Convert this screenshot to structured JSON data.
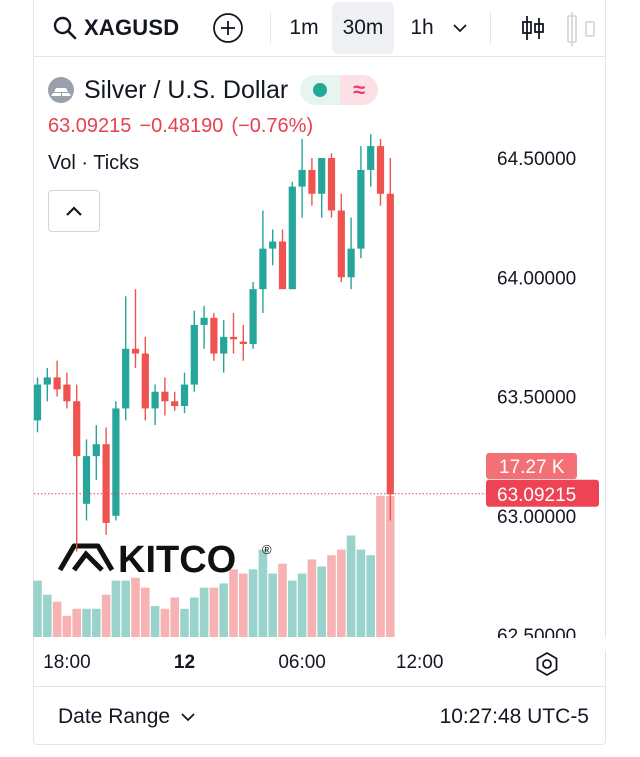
{
  "toolbar": {
    "symbol": "XAGUSD",
    "intervals": [
      "1m",
      "30m",
      "1h"
    ],
    "active_interval": "30m"
  },
  "legend": {
    "pair_name": "Silver / U.S. Dollar",
    "status_right_glyph": "≈",
    "last_price": "63.09215",
    "change": "−0.48190",
    "change_pct": "(−0.76%)",
    "volume_label": "Vol · Ticks"
  },
  "watermark": {
    "text": "KITCO",
    "mark": "®"
  },
  "bottom": {
    "date_range_label": "Date Range",
    "clock": "10:27:48 UTC-5"
  },
  "colors": {
    "up": "#26a69a",
    "down": "#ef5350",
    "vol_up": "#9ad3cc",
    "vol_down": "#f7b2b4",
    "price_tag": "#ee4354"
  },
  "chart_data": {
    "type": "candlestick",
    "timeframe": "30m",
    "ylim": [
      62.5,
      64.6
    ],
    "y_ticks": [
      62.5,
      63.0,
      63.5,
      64.0,
      64.5
    ],
    "y_tick_labels": [
      "62.50000",
      "63.00000",
      "63.50000",
      "64.00000",
      "64.50000"
    ],
    "x_tick_labels": [
      {
        "label": "18:00",
        "bar": 3
      },
      {
        "label": "12",
        "bar": 15,
        "bold": true
      },
      {
        "label": "06:00",
        "bar": 27
      },
      {
        "label": "12:00",
        "bar": 39
      }
    ],
    "last_price": 63.09215,
    "last_price_label": "63.09215",
    "last_volume_label": "17.27 K",
    "candles": [
      {
        "o": 63.4,
        "h": 63.58,
        "l": 63.35,
        "c": 63.55
      },
      {
        "o": 63.55,
        "h": 63.62,
        "l": 63.48,
        "c": 63.58
      },
      {
        "o": 63.58,
        "h": 63.65,
        "l": 63.5,
        "c": 63.53
      },
      {
        "o": 63.55,
        "h": 63.6,
        "l": 63.45,
        "c": 63.48
      },
      {
        "o": 63.48,
        "h": 63.55,
        "l": 62.85,
        "c": 63.25
      },
      {
        "o": 63.05,
        "h": 63.32,
        "l": 62.98,
        "c": 63.25
      },
      {
        "o": 63.25,
        "h": 63.38,
        "l": 63.15,
        "c": 63.3
      },
      {
        "o": 63.3,
        "h": 63.37,
        "l": 62.92,
        "c": 62.97
      },
      {
        "o": 63.0,
        "h": 63.48,
        "l": 62.98,
        "c": 63.45
      },
      {
        "o": 63.45,
        "h": 63.92,
        "l": 63.4,
        "c": 63.7
      },
      {
        "o": 63.7,
        "h": 63.95,
        "l": 63.62,
        "c": 63.68
      },
      {
        "o": 63.68,
        "h": 63.75,
        "l": 63.4,
        "c": 63.45
      },
      {
        "o": 63.45,
        "h": 63.55,
        "l": 63.38,
        "c": 63.52
      },
      {
        "o": 63.52,
        "h": 63.58,
        "l": 63.42,
        "c": 63.48
      },
      {
        "o": 63.48,
        "h": 63.52,
        "l": 63.44,
        "c": 63.46
      },
      {
        "o": 63.46,
        "h": 63.6,
        "l": 63.43,
        "c": 63.55
      },
      {
        "o": 63.55,
        "h": 63.86,
        "l": 63.52,
        "c": 63.8
      },
      {
        "o": 63.8,
        "h": 63.88,
        "l": 63.7,
        "c": 63.83
      },
      {
        "o": 63.83,
        "h": 63.85,
        "l": 63.65,
        "c": 63.68
      },
      {
        "o": 63.68,
        "h": 63.82,
        "l": 63.6,
        "c": 63.75
      },
      {
        "o": 63.75,
        "h": 63.85,
        "l": 63.68,
        "c": 63.74
      },
      {
        "o": 63.73,
        "h": 63.8,
        "l": 63.65,
        "c": 63.72
      },
      {
        "o": 63.72,
        "h": 63.98,
        "l": 63.7,
        "c": 63.95
      },
      {
        "o": 63.95,
        "h": 64.28,
        "l": 63.85,
        "c": 64.12
      },
      {
        "o": 64.12,
        "h": 64.2,
        "l": 64.05,
        "c": 64.15
      },
      {
        "o": 64.15,
        "h": 64.2,
        "l": 63.95,
        "c": 63.95
      },
      {
        "o": 63.95,
        "h": 64.4,
        "l": 63.95,
        "c": 64.38
      },
      {
        "o": 64.38,
        "h": 64.58,
        "l": 64.25,
        "c": 64.45
      },
      {
        "o": 64.45,
        "h": 64.5,
        "l": 64.3,
        "c": 64.35
      },
      {
        "o": 64.35,
        "h": 64.5,
        "l": 64.25,
        "c": 64.5
      },
      {
        "o": 64.5,
        "h": 64.52,
        "l": 64.25,
        "c": 64.28
      },
      {
        "o": 64.28,
        "h": 64.35,
        "l": 63.98,
        "c": 64.0
      },
      {
        "o": 64.0,
        "h": 64.25,
        "l": 63.95,
        "c": 64.12
      },
      {
        "o": 64.12,
        "h": 64.55,
        "l": 64.08,
        "c": 64.45
      },
      {
        "o": 64.45,
        "h": 64.6,
        "l": 64.38,
        "c": 64.55
      },
      {
        "o": 64.55,
        "h": 64.58,
        "l": 64.3,
        "c": 64.35
      },
      {
        "o": 64.35,
        "h": 64.5,
        "l": 62.98,
        "c": 63.09
      }
    ],
    "volume_levels": [
      0.4,
      0.3,
      0.25,
      0.15,
      0.2,
      0.2,
      0.2,
      0.3,
      0.4,
      0.4,
      0.42,
      0.35,
      0.22,
      0.2,
      0.28,
      0.2,
      0.28,
      0.35,
      0.35,
      0.38,
      0.48,
      0.45,
      0.48,
      0.62,
      0.45,
      0.52,
      0.4,
      0.45,
      0.55,
      0.5,
      0.58,
      0.62,
      0.72,
      0.62,
      0.58,
      1.0,
      1.0
    ]
  }
}
